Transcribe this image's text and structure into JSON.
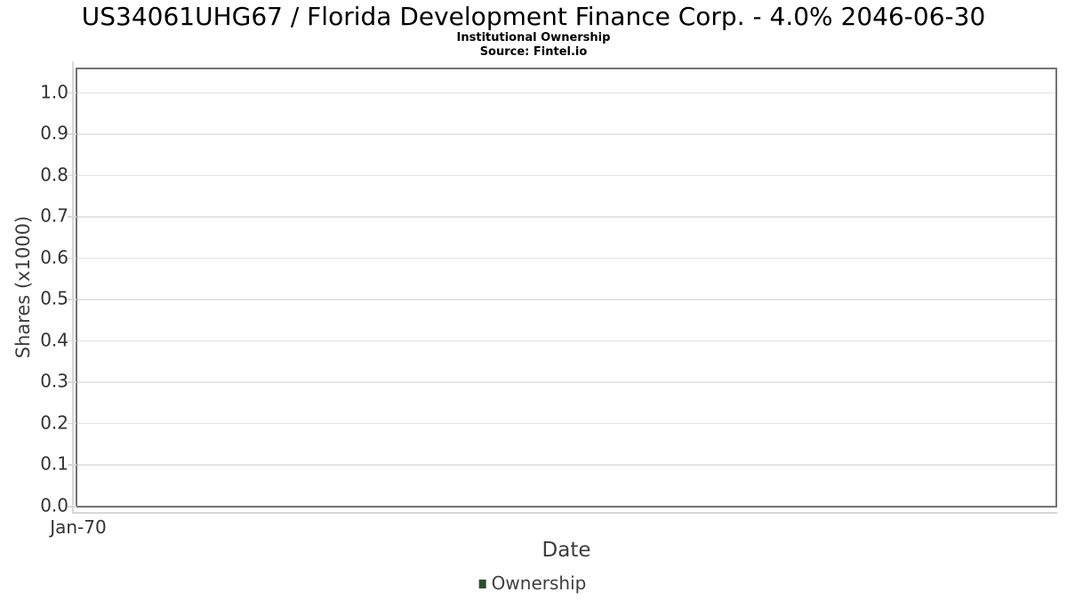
{
  "chart_data": {
    "type": "line",
    "title": "US34061UHG67 / Florida Development Finance Corp. - 4.0% 2046-06-30",
    "subtitle": "Institutional Ownership",
    "source_note": "Source: Fintel.io",
    "xlabel": "Date",
    "ylabel": "Shares (x1000)",
    "x_ticks": [
      "Jan-70"
    ],
    "y_tick_values": [
      0.0,
      0.1,
      0.2,
      0.3,
      0.4,
      0.5,
      0.6,
      0.7,
      0.8,
      0.9,
      1.0
    ],
    "y_tick_labels": [
      "0.0",
      "0.1",
      "0.2",
      "0.3",
      "0.4",
      "0.5",
      "0.6",
      "0.7",
      "0.8",
      "0.9",
      "1.0"
    ],
    "ylim": [
      0,
      1.055
    ],
    "grid": "horizontal",
    "legend_position": "bottom-center",
    "series": [
      {
        "name": "Ownership",
        "color": "#284e2d",
        "x": [],
        "values": []
      }
    ]
  },
  "legend": {
    "items": [
      {
        "label": "Ownership",
        "swatch_color": "#284e2d"
      }
    ]
  },
  "colors": {
    "title_text": "#000000",
    "tick_label_text": "#333333",
    "axis_label_text": "#3d3d3d",
    "legend_label_text": "#3f3f3f",
    "plot_border": "#737373",
    "gridline": "#e4e4e4",
    "axis_line": "#d8d8d8",
    "legend_swatch": "#284e2d",
    "background": "#ffffff"
  }
}
